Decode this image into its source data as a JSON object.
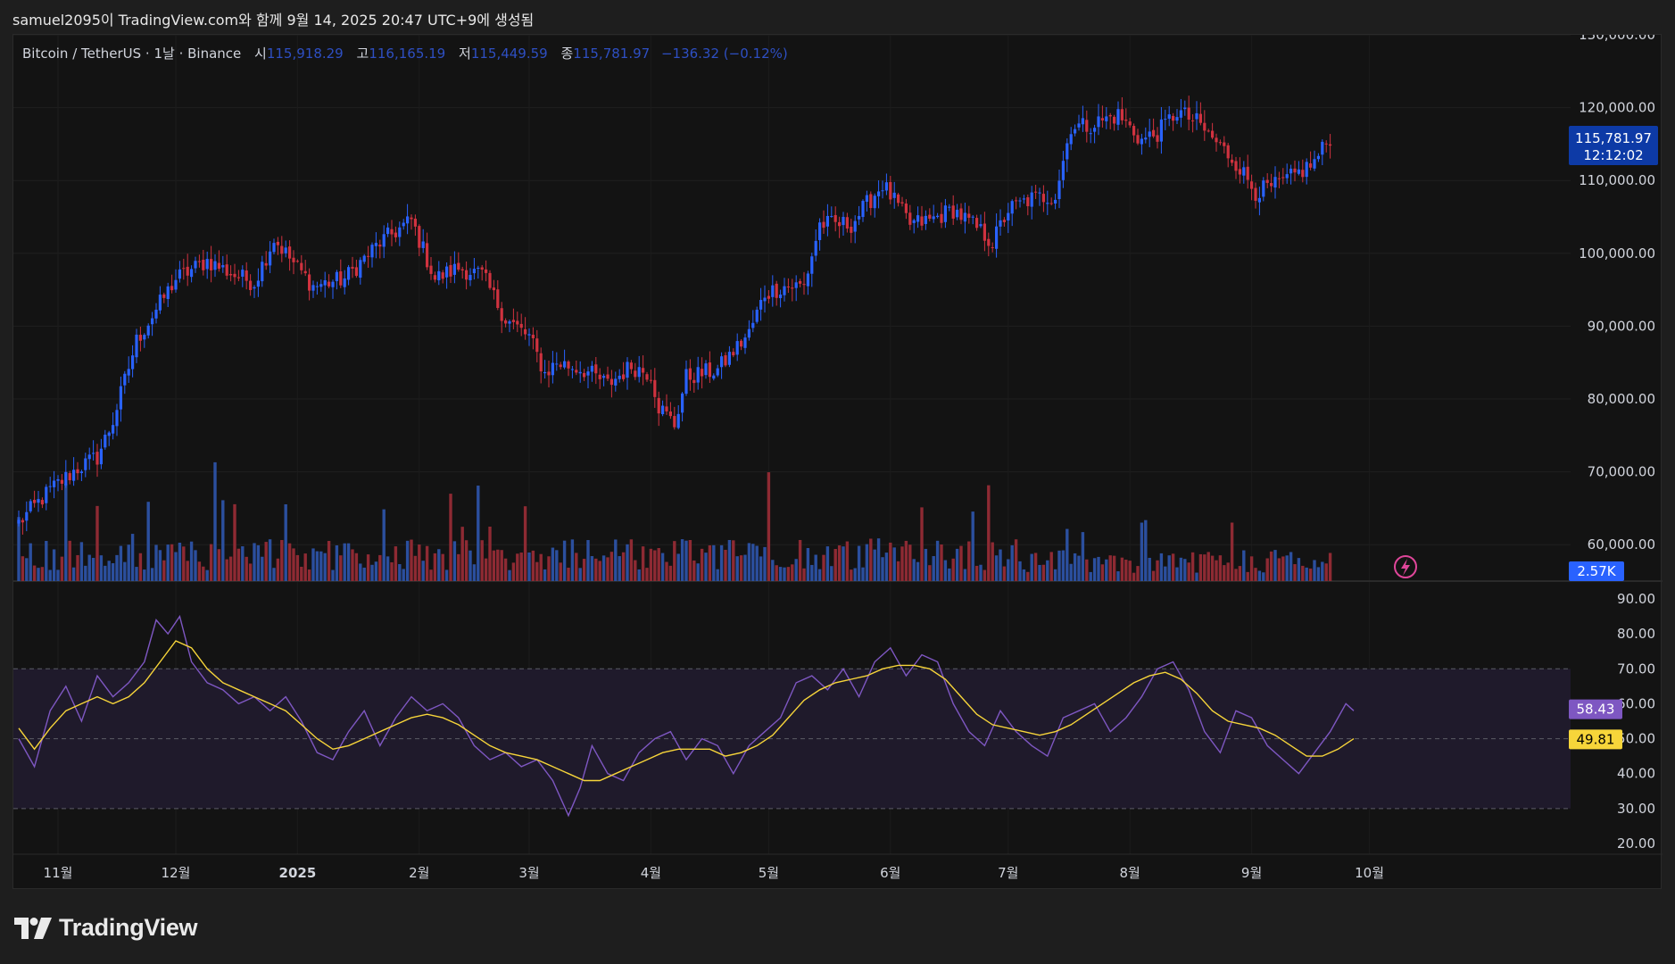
{
  "header": {
    "caption": "samuel2095이 TradingView.com와 함께 9월 14, 2025 20:47 UTC+9에 생성됨"
  },
  "legend": {
    "symbol": "Bitcoin / TetherUS · 1날 · Binance",
    "open_label": "시",
    "open": "115,918.29",
    "high_label": "고",
    "high": "116,165.19",
    "low_label": "저",
    "low": "115,449.59",
    "close_label": "종",
    "close": "115,781.97",
    "change": "−136.32 (−0.12%)"
  },
  "badges": {
    "price": "115,781.97",
    "countdown": "12:12:02",
    "volume": "2.57K",
    "rsi": "58.43",
    "rsi_ma": "49.81"
  },
  "logo": {
    "text": "TradingView"
  },
  "colors": {
    "up": "#2962ff",
    "down": "#d0323f",
    "up_volume": "#2b4f9e",
    "down_volume": "#8e2a33",
    "rsi_line": "#7e57c2",
    "rsi_ma": "#f7d53a",
    "price_badge": "#0d3aa6",
    "volume_badge": "#2962ff",
    "rsi_badge": "#7e57c2",
    "rsi_ma_badge": "#f7d53a"
  },
  "chart_data": {
    "type": "candlestick",
    "interval": "1D",
    "price_axis": {
      "min": 55000,
      "max": 130000,
      "ticks": [
        "130,000.00",
        "120,000.00",
        "110,000.00",
        "100,000.00",
        "90,000.00",
        "80,000.00",
        "70,000.00",
        "60,000.00"
      ],
      "tick_values": [
        130000,
        120000,
        110000,
        100000,
        90000,
        80000,
        70000,
        60000
      ]
    },
    "rsi_axis": {
      "min": 20,
      "max": 90,
      "ticks": [
        "90.00",
        "80.00",
        "70.00",
        "60.00",
        "50.00",
        "40.00",
        "30.00",
        "20.00"
      ],
      "tick_values": [
        90,
        80,
        70,
        60,
        50,
        40,
        30,
        20
      ],
      "band": [
        30,
        70
      ]
    },
    "x_axis": {
      "labels": [
        "11월",
        "12월",
        "2025",
        "2월",
        "3월",
        "4월",
        "5월",
        "6월",
        "7월",
        "8월",
        "9월",
        "10월"
      ],
      "label_index": [
        10,
        40,
        71,
        102,
        130,
        161,
        191,
        222,
        252,
        283,
        314,
        344
      ]
    },
    "price_path": [
      [
        0,
        63000
      ],
      [
        8,
        67500
      ],
      [
        15,
        70500
      ],
      [
        20,
        72000
      ],
      [
        24,
        77000
      ],
      [
        30,
        88000
      ],
      [
        40,
        96500
      ],
      [
        48,
        99000
      ],
      [
        55,
        97000
      ],
      [
        60,
        96000
      ],
      [
        65,
        102000
      ],
      [
        71,
        98000
      ],
      [
        75,
        95500
      ],
      [
        83,
        96500
      ],
      [
        92,
        101500
      ],
      [
        100,
        104500
      ],
      [
        106,
        96500
      ],
      [
        112,
        98000
      ],
      [
        118,
        97000
      ],
      [
        124,
        91000
      ],
      [
        130,
        88500
      ],
      [
        134,
        83500
      ],
      [
        137,
        85000
      ],
      [
        144,
        84000
      ],
      [
        150,
        82000
      ],
      [
        156,
        84500
      ],
      [
        161,
        83500
      ],
      [
        163,
        79000
      ],
      [
        167,
        76500
      ],
      [
        170,
        83000
      ],
      [
        178,
        84000
      ],
      [
        186,
        89000
      ],
      [
        190,
        94500
      ],
      [
        195,
        95500
      ],
      [
        200,
        95500
      ],
      [
        204,
        104000
      ],
      [
        212,
        104000
      ],
      [
        220,
        109500
      ],
      [
        227,
        104000
      ],
      [
        232,
        104500
      ],
      [
        238,
        106000
      ],
      [
        245,
        103000
      ],
      [
        248,
        101500
      ],
      [
        252,
        106000
      ],
      [
        258,
        107500
      ],
      [
        264,
        108000
      ],
      [
        268,
        117500
      ],
      [
        272,
        117500
      ],
      [
        280,
        119000
      ],
      [
        286,
        115500
      ],
      [
        290,
        116500
      ],
      [
        295,
        119500
      ],
      [
        300,
        118000
      ],
      [
        310,
        112500
      ],
      [
        315,
        108500
      ],
      [
        319,
        109000
      ],
      [
        323,
        110000
      ],
      [
        330,
        112500
      ],
      [
        334,
        116000
      ]
    ],
    "rsi_points": [
      [
        0,
        50
      ],
      [
        4,
        42
      ],
      [
        8,
        58
      ],
      [
        12,
        65
      ],
      [
        16,
        55
      ],
      [
        20,
        68
      ],
      [
        24,
        62
      ],
      [
        28,
        66
      ],
      [
        32,
        72
      ],
      [
        35,
        84
      ],
      [
        38,
        80
      ],
      [
        41,
        85
      ],
      [
        44,
        72
      ],
      [
        48,
        66
      ],
      [
        52,
        64
      ],
      [
        56,
        60
      ],
      [
        60,
        62
      ],
      [
        64,
        58
      ],
      [
        68,
        62
      ],
      [
        72,
        55
      ],
      [
        76,
        46
      ],
      [
        80,
        44
      ],
      [
        84,
        52
      ],
      [
        88,
        58
      ],
      [
        92,
        48
      ],
      [
        96,
        56
      ],
      [
        100,
        62
      ],
      [
        104,
        58
      ],
      [
        108,
        60
      ],
      [
        112,
        56
      ],
      [
        116,
        48
      ],
      [
        120,
        44
      ],
      [
        124,
        46
      ],
      [
        128,
        42
      ],
      [
        132,
        44
      ],
      [
        136,
        38
      ],
      [
        140,
        28
      ],
      [
        143,
        36
      ],
      [
        146,
        48
      ],
      [
        150,
        40
      ],
      [
        154,
        38
      ],
      [
        158,
        46
      ],
      [
        162,
        50
      ],
      [
        166,
        52
      ],
      [
        170,
        44
      ],
      [
        174,
        50
      ],
      [
        178,
        48
      ],
      [
        182,
        40
      ],
      [
        186,
        48
      ],
      [
        190,
        52
      ],
      [
        194,
        56
      ],
      [
        198,
        66
      ],
      [
        202,
        68
      ],
      [
        206,
        64
      ],
      [
        210,
        70
      ],
      [
        214,
        62
      ],
      [
        218,
        72
      ],
      [
        222,
        76
      ],
      [
        226,
        68
      ],
      [
        230,
        74
      ],
      [
        234,
        72
      ],
      [
        238,
        60
      ],
      [
        242,
        52
      ],
      [
        246,
        48
      ],
      [
        250,
        58
      ],
      [
        254,
        52
      ],
      [
        258,
        48
      ],
      [
        262,
        45
      ],
      [
        266,
        56
      ],
      [
        270,
        58
      ],
      [
        274,
        60
      ],
      [
        278,
        52
      ],
      [
        282,
        56
      ],
      [
        286,
        62
      ],
      [
        290,
        70
      ],
      [
        294,
        72
      ],
      [
        298,
        64
      ],
      [
        302,
        52
      ],
      [
        306,
        46
      ],
      [
        310,
        58
      ],
      [
        314,
        56
      ],
      [
        318,
        48
      ],
      [
        322,
        44
      ],
      [
        326,
        40
      ],
      [
        330,
        46
      ],
      [
        334,
        52
      ],
      [
        338,
        60
      ],
      [
        340,
        58
      ]
    ],
    "rsi_ma_points": [
      [
        0,
        53
      ],
      [
        4,
        47
      ],
      [
        8,
        53
      ],
      [
        12,
        58
      ],
      [
        16,
        60
      ],
      [
        20,
        62
      ],
      [
        24,
        60
      ],
      [
        28,
        62
      ],
      [
        32,
        66
      ],
      [
        36,
        72
      ],
      [
        40,
        78
      ],
      [
        44,
        76
      ],
      [
        48,
        70
      ],
      [
        52,
        66
      ],
      [
        56,
        64
      ],
      [
        60,
        62
      ],
      [
        64,
        60
      ],
      [
        68,
        58
      ],
      [
        72,
        54
      ],
      [
        76,
        50
      ],
      [
        80,
        47
      ],
      [
        84,
        48
      ],
      [
        88,
        50
      ],
      [
        92,
        52
      ],
      [
        96,
        54
      ],
      [
        100,
        56
      ],
      [
        104,
        57
      ],
      [
        108,
        56
      ],
      [
        112,
        54
      ],
      [
        116,
        51
      ],
      [
        120,
        48
      ],
      [
        124,
        46
      ],
      [
        128,
        45
      ],
      [
        132,
        44
      ],
      [
        136,
        42
      ],
      [
        140,
        40
      ],
      [
        144,
        38
      ],
      [
        148,
        38
      ],
      [
        152,
        40
      ],
      [
        156,
        42
      ],
      [
        160,
        44
      ],
      [
        164,
        46
      ],
      [
        168,
        47
      ],
      [
        172,
        47
      ],
      [
        176,
        47
      ],
      [
        180,
        45
      ],
      [
        184,
        46
      ],
      [
        188,
        48
      ],
      [
        192,
        51
      ],
      [
        196,
        56
      ],
      [
        200,
        61
      ],
      [
        204,
        64
      ],
      [
        208,
        66
      ],
      [
        212,
        67
      ],
      [
        216,
        68
      ],
      [
        220,
        70
      ],
      [
        224,
        71
      ],
      [
        228,
        71
      ],
      [
        232,
        70
      ],
      [
        236,
        67
      ],
      [
        240,
        62
      ],
      [
        244,
        57
      ],
      [
        248,
        54
      ],
      [
        252,
        53
      ],
      [
        256,
        52
      ],
      [
        260,
        51
      ],
      [
        264,
        52
      ],
      [
        268,
        54
      ],
      [
        272,
        57
      ],
      [
        276,
        60
      ],
      [
        280,
        63
      ],
      [
        284,
        66
      ],
      [
        288,
        68
      ],
      [
        292,
        69
      ],
      [
        296,
        67
      ],
      [
        300,
        63
      ],
      [
        304,
        58
      ],
      [
        308,
        55
      ],
      [
        312,
        54
      ],
      [
        316,
        53
      ],
      [
        320,
        51
      ],
      [
        324,
        48
      ],
      [
        328,
        45
      ],
      [
        332,
        45
      ],
      [
        336,
        47
      ],
      [
        340,
        50
      ]
    ]
  }
}
